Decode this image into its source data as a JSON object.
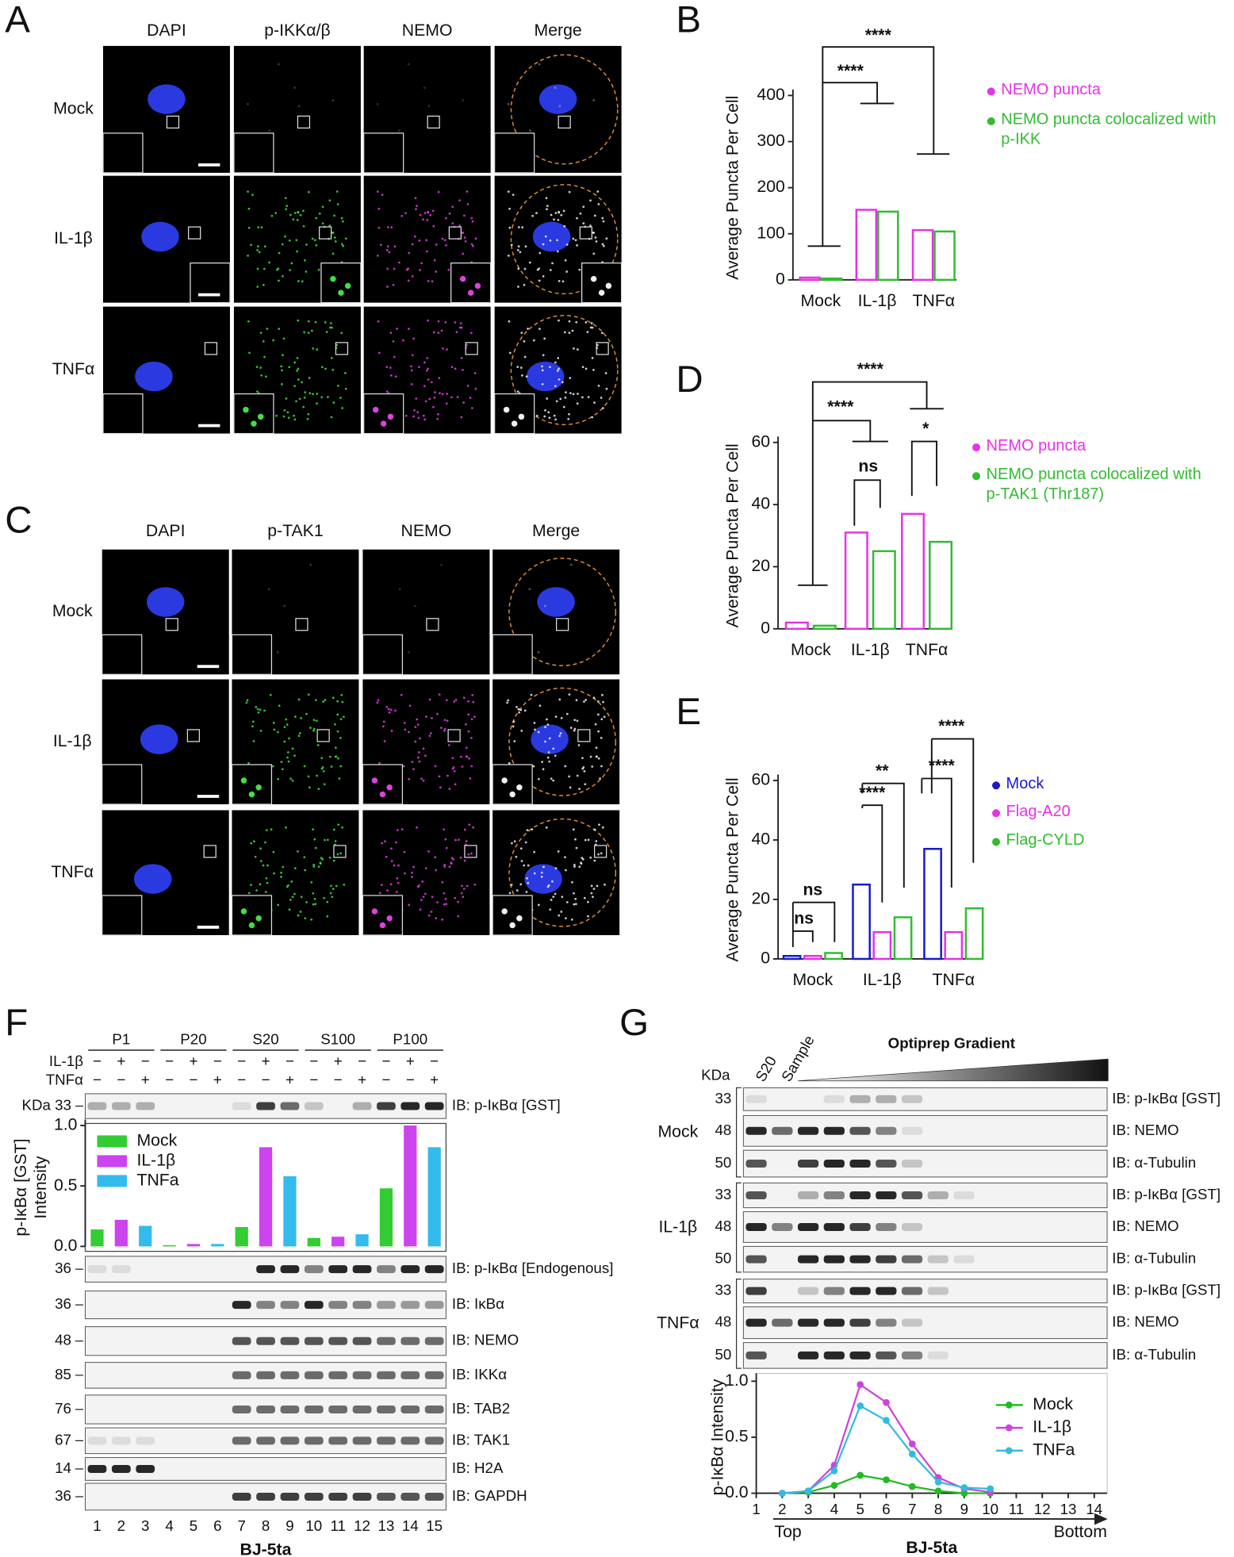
{
  "panel_letters": [
    "A",
    "B",
    "C",
    "D",
    "E",
    "F",
    "G"
  ],
  "micrographs": [
    {
      "channels": [
        "DAPI",
        "p-IKKα/β",
        "NEMO",
        "Merge"
      ],
      "rows": [
        "Mock",
        "IL-1β",
        "TNFα"
      ]
    },
    {
      "channels": [
        "DAPI",
        "p-TAK1",
        "NEMO",
        "Merge"
      ],
      "rows": [
        "Mock",
        "IL-1β",
        "TNFα"
      ]
    }
  ],
  "chart_data": [
    {
      "type": "bar",
      "ylabel": "Average Puncta Per Cell",
      "categories": [
        "Mock",
        "IL-1β",
        "TNFα"
      ],
      "series": [
        {
          "name": "NEMO puncta",
          "color": "#e633e6",
          "values": [
            5,
            152,
            108
          ]
        },
        {
          "name": "NEMO puncta colocalized with p-IKK",
          "color": "#33bb33",
          "values": [
            3,
            148,
            105
          ]
        }
      ],
      "ylim": [
        0,
        400
      ],
      "yticks": [
        0,
        100,
        200,
        300,
        400
      ],
      "annotations": [
        "****",
        "****"
      ]
    },
    {
      "type": "bar",
      "ylabel": "Average Puncta Per Cell",
      "categories": [
        "Mock",
        "IL-1β",
        "TNFα"
      ],
      "series": [
        {
          "name": "NEMO puncta",
          "color": "#e633e6",
          "values": [
            2,
            31,
            37
          ]
        },
        {
          "name": "NEMO puncta colocalized with p-TAK1 (Thr187)",
          "color": "#33bb33",
          "values": [
            1,
            25,
            28
          ]
        }
      ],
      "ylim": [
        0,
        60
      ],
      "yticks": [
        0,
        20,
        40,
        60
      ],
      "annotations": [
        "****",
        "****",
        "ns",
        "*"
      ]
    },
    {
      "type": "bar",
      "ylabel": "Average Puncta Per Cell",
      "categories": [
        "Mock",
        "IL-1β",
        "TNFα"
      ],
      "series": [
        {
          "name": "Mock",
          "color": "#1a1acc",
          "values": [
            1,
            25,
            37
          ]
        },
        {
          "name": "Flag-A20",
          "color": "#e633e6",
          "values": [
            1,
            9,
            9
          ]
        },
        {
          "name": "Flag-CYLD",
          "color": "#33bb33",
          "values": [
            2,
            14,
            17
          ]
        }
      ],
      "ylim": [
        0,
        60
      ],
      "yticks": [
        0,
        20,
        40,
        60
      ],
      "annotations": [
        "****",
        "**",
        "****",
        "****",
        "ns",
        "ns"
      ]
    },
    {
      "type": "bar",
      "ylabel": [
        "p-IκBα [GST]",
        "Intensity"
      ],
      "categories": [
        "P1",
        "P20",
        "S20",
        "S100",
        "P100"
      ],
      "series": [
        {
          "name": "Mock",
          "color": "#33cc33",
          "values": [
            0.14,
            0.01,
            0.16,
            0.07,
            0.48
          ]
        },
        {
          "name": "IL-1β",
          "color": "#cc44ee",
          "values": [
            0.22,
            0.02,
            0.82,
            0.08,
            1.0
          ]
        },
        {
          "name": "TNFa",
          "color": "#33bbee",
          "values": [
            0.17,
            0.02,
            0.58,
            0.1,
            0.82
          ]
        }
      ],
      "ylim": [
        0,
        1
      ],
      "yticks": [
        {
          "value": 0,
          "label": "0.0"
        },
        {
          "value": 0.5,
          "label": "0.5"
        },
        {
          "value": 1,
          "label": "1.0"
        }
      ]
    },
    {
      "type": "line",
      "ylabel": "p-IκBα Intensity",
      "x": [
        2,
        3,
        4,
        5,
        6,
        7,
        8,
        9,
        10
      ],
      "series": [
        {
          "name": "Mock",
          "color": "#22bb22",
          "values": [
            0,
            0.01,
            0.07,
            0.16,
            0.12,
            0.06,
            0.02,
            0,
            0
          ]
        },
        {
          "name": "IL-1β",
          "color": "#cc44dd",
          "values": [
            0,
            0.02,
            0.25,
            0.97,
            0.81,
            0.44,
            0.14,
            0.04,
            0.01
          ]
        },
        {
          "name": "TNFa",
          "color": "#33bbdd",
          "values": [
            0,
            0.02,
            0.2,
            0.78,
            0.65,
            0.35,
            0.1,
            0.05,
            0.04
          ]
        }
      ],
      "xlim": [
        1,
        14
      ],
      "xticks": [
        1,
        2,
        3,
        4,
        5,
        6,
        7,
        8,
        9,
        10,
        11,
        12,
        13,
        14
      ],
      "ylim": [
        0,
        1
      ],
      "yticks": [
        {
          "value": 0,
          "label": "0.0"
        },
        {
          "value": 0.5,
          "label": "0.5"
        },
        {
          "value": 1,
          "label": "1.0"
        }
      ]
    }
  ],
  "blots": {
    "F": {
      "kda_header": "KDa",
      "rows": [
        {
          "kda": "33",
          "label": "IB: p-IκBα [GST]"
        },
        {
          "kda": "36",
          "label": "IB: p-IκBα [Endogenous]"
        },
        {
          "kda": "36",
          "label": "IB: IκBα"
        },
        {
          "kda": "48",
          "label": "IB: NEMO"
        },
        {
          "kda": "85",
          "label": "IB: IKKα"
        },
        {
          "kda": "76",
          "label": "IB: TAB2"
        },
        {
          "kda": "67",
          "label": "IB: TAK1"
        },
        {
          "kda": "14",
          "label": "IB: H2A"
        },
        {
          "kda": "36",
          "label": "IB: GAPDH"
        }
      ],
      "treatments": [
        {
          "name": "IL-1β",
          "signs": [
            "−",
            "+",
            "−",
            "−",
            "+",
            "−",
            "−",
            "+",
            "−",
            "−",
            "+",
            "−",
            "−",
            "+",
            "−"
          ]
        },
        {
          "name": "TNFα",
          "signs": [
            "−",
            "−",
            "+",
            "−",
            "−",
            "+",
            "−",
            "−",
            "+",
            "−",
            "−",
            "+",
            "−",
            "−",
            "+"
          ]
        }
      ],
      "lanes": [
        1,
        2,
        3,
        4,
        5,
        6,
        7,
        8,
        9,
        10,
        11,
        12,
        13,
        14,
        15
      ],
      "cell_line": "BJ-5ta"
    },
    "G": {
      "kda_header": "KDa",
      "lane_labels": [
        "S20",
        "Sample"
      ],
      "gradient_label": "Optiprep Gradient",
      "groups": [
        {
          "name": "Mock",
          "rows": [
            {
              "kda": "33",
              "label": "IB: p-IκBα [GST]"
            },
            {
              "kda": "48",
              "label": "IB: NEMO"
            },
            {
              "kda": "50",
              "label": "IB: α-Tubulin"
            }
          ]
        },
        {
          "name": "IL-1β",
          "rows": [
            {
              "kda": "33",
              "label": "IB: p-IκBα [GST]"
            },
            {
              "kda": "48",
              "label": "IB: NEMO"
            },
            {
              "kda": "50",
              "label": "IB: α-Tubulin"
            }
          ]
        },
        {
          "name": "TNFα",
          "rows": [
            {
              "kda": "33",
              "label": "IB: p-IκBα [GST]"
            },
            {
              "kda": "48",
              "label": "IB: NEMO"
            },
            {
              "kda": "50",
              "label": "IB: α-Tubulin"
            }
          ]
        }
      ],
      "top": "Top",
      "bottom": "Bottom",
      "cell_line": "BJ-5ta"
    }
  }
}
